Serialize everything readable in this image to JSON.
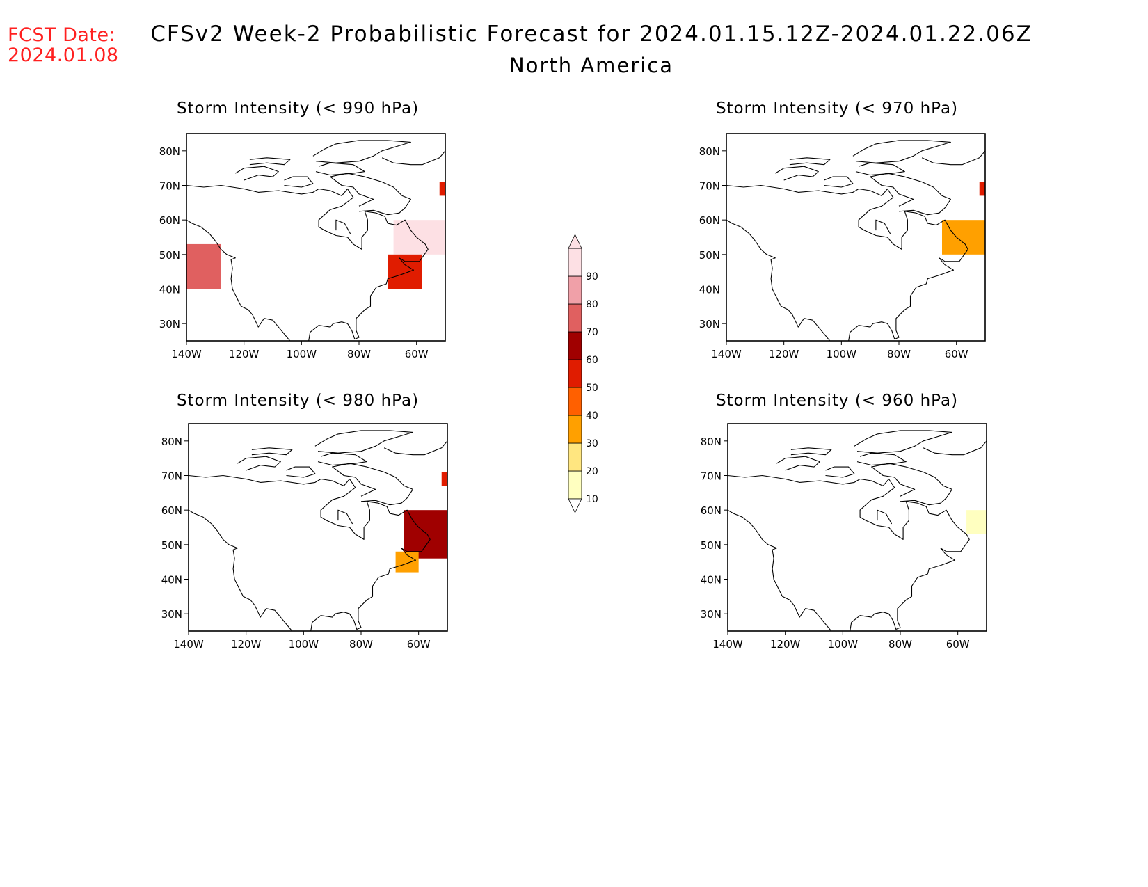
{
  "fcst_label": "FCST Date:",
  "fcst_date": "2024.01.08",
  "title": "CFSv2 Week-2 Probabilistic Forecast for 2024.01.15.12Z-2024.01.22.06Z",
  "subtitle": "North America",
  "axes": {
    "lat_ticks": [
      "80N",
      "70N",
      "60N",
      "50N",
      "40N",
      "30N"
    ],
    "lon_ticks": [
      "140W",
      "120W",
      "100W",
      "80W",
      "60W"
    ]
  },
  "colorbar": {
    "levels": [
      "10",
      "20",
      "30",
      "40",
      "50",
      "60",
      "70",
      "80",
      "90"
    ],
    "colors": [
      "#ffffc0",
      "#ffe680",
      "#ffa000",
      "#ff6000",
      "#e01c00",
      "#a00000",
      "#e06060",
      "#f0a0a8",
      "#fde0e4"
    ]
  },
  "panels": [
    {
      "title": "Storm Intensity (< 990 hPa)",
      "regions": [
        {
          "lon_min": -140,
          "lon_max": -128,
          "lat_min": 40,
          "lat_max": 53,
          "level": "70",
          "description_color": "#e06060"
        },
        {
          "lon_min": -68,
          "lon_max": -50,
          "lat_min": 50,
          "lat_max": 60,
          "level": "90"
        },
        {
          "lon_min": -70,
          "lon_max": -58,
          "lat_min": 40,
          "lat_max": 50,
          "level": "50"
        },
        {
          "lon_min": -52,
          "lon_max": -50,
          "lat_min": 67,
          "lat_max": 71,
          "level": "50"
        }
      ]
    },
    {
      "title": "Storm Intensity (< 970 hPa)",
      "regions": [
        {
          "lon_min": -65,
          "lon_max": -50,
          "lat_min": 50,
          "lat_max": 60,
          "level": "30"
        },
        {
          "lon_min": -52,
          "lon_max": -50,
          "lat_min": 67,
          "lat_max": 71,
          "level": "50"
        }
      ]
    },
    {
      "title": "Storm Intensity (< 980 hPa)",
      "regions": [
        {
          "lon_min": -65,
          "lon_max": -50,
          "lat_min": 46,
          "lat_max": 60,
          "level": "60"
        },
        {
          "lon_min": -68,
          "lon_max": -60,
          "lat_min": 42,
          "lat_max": 48,
          "level": "30"
        },
        {
          "lon_min": -52,
          "lon_max": -50,
          "lat_min": 67,
          "lat_max": 71,
          "level": "50"
        }
      ]
    },
    {
      "title": "Storm Intensity (< 960 hPa)",
      "regions": [
        {
          "lon_min": -57,
          "lon_max": -50,
          "lat_min": 53,
          "lat_max": 60,
          "level": "10"
        }
      ]
    }
  ]
}
